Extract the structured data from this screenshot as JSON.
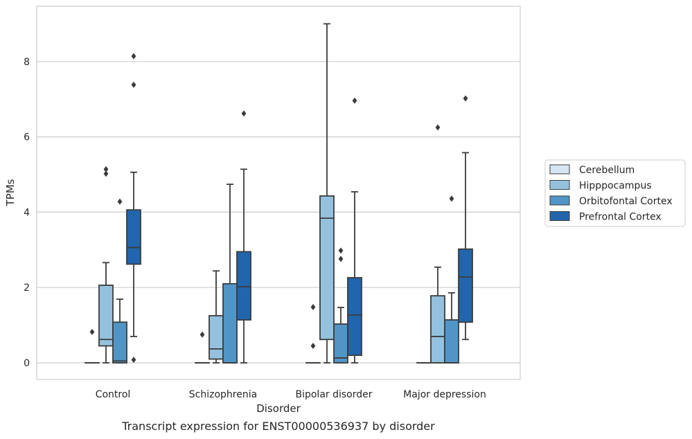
{
  "chart_data": {
    "type": "box",
    "title": "Transcript expression for ENST00000536937 by disorder",
    "xlabel": "Disorder",
    "ylabel": "TPMs",
    "ylim": [
      -0.45,
      9.35
    ],
    "yticks": [
      0,
      2,
      4,
      6,
      8
    ],
    "grid": "horizontal",
    "legend_position": "right",
    "categories": [
      "Control",
      "Schizophrenia",
      "Bipolar disorder",
      "Major depression"
    ],
    "series": [
      {
        "name": "Cerebellum",
        "color": "#d4e5f3",
        "boxes": [
          {
            "whislo": 0,
            "q1": 0,
            "med": 0,
            "q3": 0,
            "whishi": 0,
            "fliers": [
              0.82
            ]
          },
          {
            "whislo": 0,
            "q1": 0,
            "med": 0,
            "q3": 0,
            "whishi": 0,
            "fliers": [
              0.75
            ]
          },
          {
            "whislo": 0,
            "q1": 0,
            "med": 0,
            "q3": 0,
            "whishi": 0,
            "fliers": [
              0.45,
              1.48
            ]
          },
          {
            "whislo": 0,
            "q1": 0,
            "med": 0,
            "q3": 0,
            "whishi": 0,
            "fliers": []
          }
        ]
      },
      {
        "name": "Hipppocampus",
        "color": "#94c2de",
        "boxes": [
          {
            "whislo": 0,
            "q1": 0.45,
            "med": 0.62,
            "q3": 2.06,
            "whishi": 2.66,
            "fliers": [
              5.02,
              5.14
            ]
          },
          {
            "whislo": 0,
            "q1": 0.1,
            "med": 0.37,
            "q3": 1.25,
            "whishi": 2.44,
            "fliers": []
          },
          {
            "whislo": 0,
            "q1": 0.62,
            "med": 3.84,
            "q3": 4.43,
            "whishi": 9.0,
            "fliers": []
          },
          {
            "whislo": 0,
            "q1": 0,
            "med": 0.7,
            "q3": 1.78,
            "whishi": 2.54,
            "fliers": [
              6.25
            ]
          }
        ]
      },
      {
        "name": "Orbitofontal Cortex",
        "color": "#5195c7",
        "boxes": [
          {
            "whislo": 0,
            "q1": 0,
            "med": 0.05,
            "q3": 1.08,
            "whishi": 1.69,
            "fliers": [
              4.28
            ]
          },
          {
            "whislo": 0,
            "q1": 0,
            "med": 0,
            "q3": 2.1,
            "whishi": 4.74,
            "fliers": []
          },
          {
            "whislo": 0,
            "q1": 0,
            "med": 0.13,
            "q3": 1.03,
            "whishi": 1.47,
            "fliers": [
              2.76,
              2.98
            ]
          },
          {
            "whislo": 0,
            "q1": 0,
            "med": 0,
            "q3": 1.14,
            "whishi": 1.86,
            "fliers": [
              4.36
            ]
          }
        ]
      },
      {
        "name": "Prefrontal Cortex",
        "color": "#2166ac",
        "boxes": [
          {
            "whislo": 0.7,
            "q1": 2.62,
            "med": 3.06,
            "q3": 4.06,
            "whishi": 5.06,
            "fliers": [
              0.08,
              7.38,
              8.14
            ]
          },
          {
            "whislo": 0,
            "q1": 1.14,
            "med": 2.02,
            "q3": 2.95,
            "whishi": 5.14,
            "fliers": [
              6.62
            ]
          },
          {
            "whislo": 0,
            "q1": 0.2,
            "med": 1.27,
            "q3": 2.26,
            "whishi": 4.54,
            "fliers": [
              6.96
            ]
          },
          {
            "whislo": 0.62,
            "q1": 1.08,
            "med": 2.28,
            "q3": 3.02,
            "whishi": 5.58,
            "fliers": [
              7.02
            ]
          }
        ]
      }
    ]
  }
}
